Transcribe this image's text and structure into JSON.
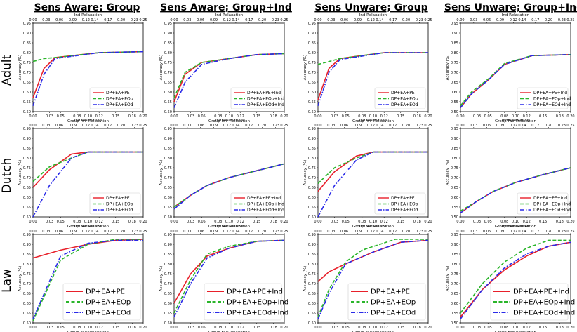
{
  "column_titles": [
    "Sens Aware: Group",
    "Sens Aware; Group+Ind",
    "Sens Unware; Group",
    "Sens Unware; Group+Ind"
  ],
  "row_labels": [
    "Adult",
    "Dutch",
    "Law"
  ],
  "colors": {
    "pe": "#e8202a",
    "eop": "#2ab52a",
    "eod": "#2a2ae8"
  },
  "chart_data": {
    "type": "line",
    "grid": "3x4 subplots",
    "xlabel": "Group Fair Relaxation",
    "x2label": "Ind Relaxation",
    "ylabel": "Accuracy (%)",
    "xlim": [
      0.0,
      0.2
    ],
    "x2lim": [
      0.0,
      0.25
    ],
    "xticks": [
      "0.00",
      "0.03",
      "0.05",
      "0.08",
      "0.10",
      "0.12",
      "0.15",
      "0.18",
      "0.20"
    ],
    "x2ticks": [
      "0.00",
      "0.03",
      "0.06",
      "0.09",
      "0.12",
      "0.14",
      "0.17",
      "0.20",
      "0.23",
      "0.25"
    ],
    "yticks": [
      "0.50",
      "0.55",
      "0.60",
      "0.65",
      "0.70",
      "0.75",
      "0.80",
      "0.85",
      "0.90",
      "0.95"
    ],
    "panels": [
      {
        "row": "Adult",
        "col": "Sens Aware: Group",
        "ylim": [
          0.5,
          0.95
        ],
        "legend": "small",
        "series": [
          {
            "name": "DP+EA+PE",
            "key": "pe",
            "x": [
              0.0,
              0.02,
              0.04,
              0.12,
              0.2
            ],
            "y": [
              0.57,
              0.72,
              0.775,
              0.8,
              0.805
            ]
          },
          {
            "name": "DP+EA+EOp",
            "key": "eop",
            "x": [
              0.0,
              0.02,
              0.04,
              0.12,
              0.2
            ],
            "y": [
              0.755,
              0.77,
              0.775,
              0.8,
              0.805
            ]
          },
          {
            "name": "DP+EA+EOd",
            "key": "eod",
            "x": [
              0.0,
              0.02,
              0.04,
              0.12,
              0.2
            ],
            "y": [
              0.53,
              0.69,
              0.77,
              0.8,
              0.805
            ]
          }
        ]
      },
      {
        "row": "Adult",
        "col": "Sens Aware; Group+Ind",
        "ylim": [
          0.5,
          0.95
        ],
        "legend": "small",
        "series": [
          {
            "name": "DP+EA+PE+Ind",
            "key": "pe",
            "x": [
              0.0,
              0.02,
              0.05,
              0.1,
              0.15,
              0.2
            ],
            "y": [
              0.55,
              0.69,
              0.75,
              0.77,
              0.79,
              0.795
            ]
          },
          {
            "name": "DP+EA+EOp+Ind",
            "key": "eop",
            "x": [
              0.0,
              0.02,
              0.05,
              0.1,
              0.15,
              0.2
            ],
            "y": [
              0.57,
              0.7,
              0.75,
              0.77,
              0.79,
              0.795
            ]
          },
          {
            "name": "DP+EA+EOd+Ind",
            "key": "eod",
            "x": [
              0.0,
              0.02,
              0.05,
              0.1,
              0.15,
              0.2
            ],
            "y": [
              0.52,
              0.65,
              0.74,
              0.77,
              0.79,
              0.795
            ]
          }
        ]
      },
      {
        "row": "Adult",
        "col": "Sens Unware; Group",
        "ylim": [
          0.5,
          0.95
        ],
        "legend": "small",
        "series": [
          {
            "name": "DP+EA+PE",
            "key": "pe",
            "x": [
              0.0,
              0.02,
              0.04,
              0.12,
              0.2
            ],
            "y": [
              0.56,
              0.72,
              0.77,
              0.8,
              0.8
            ]
          },
          {
            "name": "DP+EA+EOp",
            "key": "eop",
            "x": [
              0.0,
              0.02,
              0.04,
              0.12,
              0.2
            ],
            "y": [
              0.74,
              0.755,
              0.77,
              0.8,
              0.8
            ]
          },
          {
            "name": "DP+EA+EOd",
            "key": "eod",
            "x": [
              0.0,
              0.02,
              0.04,
              0.12,
              0.2
            ],
            "y": [
              0.53,
              0.7,
              0.765,
              0.8,
              0.8
            ]
          }
        ]
      },
      {
        "row": "Adult",
        "col": "Sens Unware; Group+Ind",
        "ylim": [
          0.5,
          0.95
        ],
        "legend": "small",
        "series": [
          {
            "name": "DP+EA+PE+Ind",
            "key": "pe",
            "x": [
              0.0,
              0.02,
              0.05,
              0.08,
              0.13,
              0.2
            ],
            "y": [
              0.52,
              0.59,
              0.66,
              0.74,
              0.785,
              0.79
            ]
          },
          {
            "name": "DP+EA+EOp+Ind",
            "key": "eop",
            "x": [
              0.0,
              0.02,
              0.05,
              0.08,
              0.13,
              0.2
            ],
            "y": [
              0.53,
              0.6,
              0.665,
              0.745,
              0.785,
              0.79
            ]
          },
          {
            "name": "DP+EA+EOd+Ind",
            "key": "eod",
            "x": [
              0.0,
              0.02,
              0.05,
              0.08,
              0.13,
              0.2
            ],
            "y": [
              0.52,
              0.59,
              0.66,
              0.74,
              0.785,
              0.79
            ]
          }
        ]
      },
      {
        "row": "Dutch",
        "col": "Sens Aware: Group",
        "ylim": [
          0.5,
          0.95
        ],
        "legend": "small",
        "series": [
          {
            "name": "DP+EA+PE",
            "key": "pe",
            "x": [
              0.0,
              0.03,
              0.07,
              0.1,
              0.2
            ],
            "y": [
              0.65,
              0.74,
              0.82,
              0.83,
              0.83
            ]
          },
          {
            "name": "DP+EA+EOp",
            "key": "eop",
            "x": [
              0.0,
              0.03,
              0.07,
              0.1,
              0.2
            ],
            "y": [
              0.68,
              0.755,
              0.8,
              0.83,
              0.83
            ]
          },
          {
            "name": "DP+EA+EOd",
            "key": "eod",
            "x": [
              0.0,
              0.03,
              0.07,
              0.1,
              0.2
            ],
            "y": [
              0.5,
              0.66,
              0.8,
              0.83,
              0.83
            ]
          }
        ]
      },
      {
        "row": "Dutch",
        "col": "Sens Aware; Group+Ind",
        "ylim": [
          0.5,
          0.95
        ],
        "legend": "small",
        "series": [
          {
            "name": "DP+EA+PE+Ind",
            "key": "pe",
            "x": [
              0.0,
              0.03,
              0.06,
              0.1,
              0.15,
              0.2
            ],
            "y": [
              0.55,
              0.61,
              0.66,
              0.7,
              0.735,
              0.77
            ]
          },
          {
            "name": "DP+EA+EOp+Ind",
            "key": "eop",
            "x": [
              0.0,
              0.03,
              0.06,
              0.1,
              0.15,
              0.2
            ],
            "y": [
              0.55,
              0.61,
              0.66,
              0.7,
              0.735,
              0.77
            ]
          },
          {
            "name": "DP+EA+EOd+Ind",
            "key": "eod",
            "x": [
              0.0,
              0.03,
              0.06,
              0.1,
              0.15,
              0.2
            ],
            "y": [
              0.54,
              0.61,
              0.66,
              0.7,
              0.735,
              0.77
            ]
          }
        ]
      },
      {
        "row": "Dutch",
        "col": "Sens Unware; Group",
        "ylim": [
          0.5,
          0.95
        ],
        "legend": "small",
        "series": [
          {
            "name": "DP+EA+PE",
            "key": "pe",
            "x": [
              0.0,
              0.03,
              0.07,
              0.1,
              0.2
            ],
            "y": [
              0.63,
              0.73,
              0.81,
              0.83,
              0.83
            ]
          },
          {
            "name": "DP+EA+EOp",
            "key": "eop",
            "x": [
              0.0,
              0.03,
              0.07,
              0.1,
              0.2
            ],
            "y": [
              0.67,
              0.75,
              0.8,
              0.83,
              0.83
            ]
          },
          {
            "name": "DP+EA+EOd",
            "key": "eod",
            "x": [
              0.0,
              0.03,
              0.07,
              0.1,
              0.2
            ],
            "y": [
              0.5,
              0.66,
              0.79,
              0.83,
              0.83
            ]
          }
        ]
      },
      {
        "row": "Dutch",
        "col": "Sens Unware; Group+Ind",
        "ylim": [
          0.5,
          0.95
        ],
        "legend": "small",
        "series": [
          {
            "name": "DP+EA+PE+Ind",
            "key": "pe",
            "x": [
              0.0,
              0.03,
              0.06,
              0.1,
              0.15,
              0.2
            ],
            "y": [
              0.52,
              0.58,
              0.63,
              0.675,
              0.715,
              0.75
            ]
          },
          {
            "name": "DP+EA+EOp+Ind",
            "key": "eop",
            "x": [
              0.0,
              0.03,
              0.06,
              0.1,
              0.15,
              0.2
            ],
            "y": [
              0.53,
              0.58,
              0.63,
              0.675,
              0.715,
              0.75
            ]
          },
          {
            "name": "DP+EA+EOd+Ind",
            "key": "eod",
            "x": [
              0.0,
              0.03,
              0.06,
              0.1,
              0.15,
              0.2
            ],
            "y": [
              0.52,
              0.58,
              0.63,
              0.675,
              0.715,
              0.75
            ]
          }
        ]
      },
      {
        "row": "Law",
        "col": "Sens Aware: Group",
        "ylim": [
          0.5,
          0.95
        ],
        "legend": "large",
        "series": [
          {
            "name": "DP+EA+PE",
            "key": "pe",
            "x": [
              0.0,
              0.05,
              0.1,
              0.15,
              0.2
            ],
            "y": [
              0.83,
              0.87,
              0.9,
              0.92,
              0.925
            ]
          },
          {
            "name": "DP+EA+EOp",
            "key": "eop",
            "x": [
              0.0,
              0.05,
              0.1,
              0.15,
              0.2
            ],
            "y": [
              0.51,
              0.82,
              0.9,
              0.925,
              0.925
            ]
          },
          {
            "name": "DP+EA+EOd",
            "key": "eod",
            "x": [
              0.0,
              0.05,
              0.1,
              0.15,
              0.2
            ],
            "y": [
              0.52,
              0.84,
              0.905,
              0.92,
              0.92
            ]
          }
        ]
      },
      {
        "row": "Law",
        "col": "Sens Aware; Group+Ind",
        "ylim": [
          0.5,
          0.95
        ],
        "legend": "large",
        "series": [
          {
            "name": "DP+EA+PE+Ind",
            "key": "pe",
            "x": [
              0.0,
              0.03,
              0.06,
              0.1,
              0.15,
              0.2
            ],
            "y": [
              0.6,
              0.75,
              0.84,
              0.88,
              0.915,
              0.92
            ]
          },
          {
            "name": "DP+EA+EOp+Ind",
            "key": "eop",
            "x": [
              0.0,
              0.03,
              0.06,
              0.1,
              0.15,
              0.2
            ],
            "y": [
              0.55,
              0.72,
              0.85,
              0.89,
              0.915,
              0.92
            ]
          },
          {
            "name": "DP+EA+EOd+Ind",
            "key": "eod",
            "x": [
              0.0,
              0.03,
              0.06,
              0.1,
              0.15,
              0.2
            ],
            "y": [
              0.53,
              0.7,
              0.83,
              0.88,
              0.915,
              0.92
            ]
          }
        ]
      },
      {
        "row": "Law",
        "col": "Sens Unware; Group",
        "ylim": [
          0.5,
          0.95
        ],
        "legend": "large",
        "series": [
          {
            "name": "DP+EA+PE",
            "key": "pe",
            "x": [
              0.0,
              0.02,
              0.05,
              0.1,
              0.15,
              0.2
            ],
            "y": [
              0.71,
              0.76,
              0.8,
              0.86,
              0.91,
              0.92
            ]
          },
          {
            "name": "DP+EA+EOp",
            "key": "eop",
            "x": [
              0.0,
              0.02,
              0.05,
              0.08,
              0.14,
              0.2
            ],
            "y": [
              0.53,
              0.67,
              0.81,
              0.87,
              0.925,
              0.925
            ]
          },
          {
            "name": "DP+EA+EOd",
            "key": "eod",
            "x": [
              0.0,
              0.02,
              0.05,
              0.1,
              0.15,
              0.2
            ],
            "y": [
              0.52,
              0.65,
              0.8,
              0.86,
              0.91,
              0.92
            ]
          }
        ]
      },
      {
        "row": "Law",
        "col": "Sens Unware; Group+Ind",
        "ylim": [
          0.5,
          0.95
        ],
        "legend": "large",
        "series": [
          {
            "name": "DP+EA+PE+Ind",
            "key": "pe",
            "x": [
              0.0,
              0.04,
              0.08,
              0.12,
              0.16,
              0.2
            ],
            "y": [
              0.53,
              0.67,
              0.77,
              0.84,
              0.89,
              0.91
            ]
          },
          {
            "name": "DP+EA+EOp+Ind",
            "key": "eop",
            "x": [
              0.0,
              0.04,
              0.08,
              0.12,
              0.16,
              0.2
            ],
            "y": [
              0.55,
              0.7,
              0.81,
              0.88,
              0.92,
              0.92
            ]
          },
          {
            "name": "DP+EA+EOd+Ind",
            "key": "eod",
            "x": [
              0.0,
              0.04,
              0.08,
              0.12,
              0.16,
              0.2
            ],
            "y": [
              0.52,
              0.67,
              0.78,
              0.85,
              0.89,
              0.91
            ]
          }
        ]
      }
    ]
  }
}
